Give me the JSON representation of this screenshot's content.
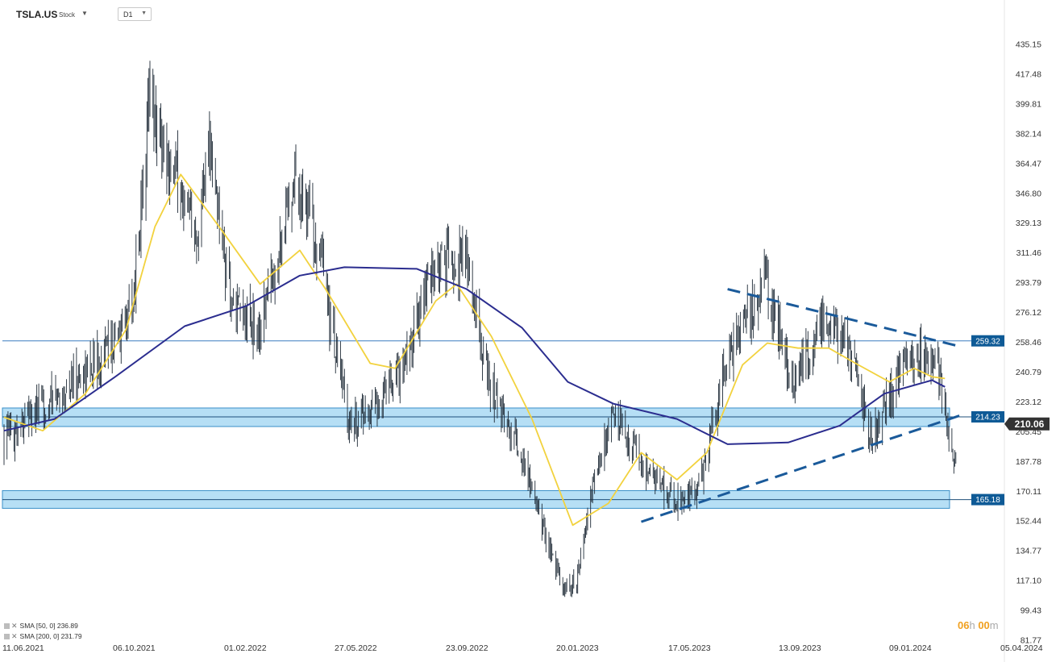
{
  "toolbar": {
    "symbol": "TSLA.US",
    "instrument_type": "Stock",
    "symbol_caret": "▼",
    "timeframe": "D1",
    "timeframe_caret": "▼"
  },
  "legend": [
    {
      "label": "SMA  [50,  0]  236.89",
      "color": "#f2d23e"
    },
    {
      "label": "SMA  [200,  0]  231.79",
      "color": "#2b2d8f"
    }
  ],
  "timer": {
    "hours": "06",
    "hours_unit": "h",
    "minutes": "00",
    "minutes_unit": "m"
  },
  "colors": {
    "candle": "#1e2a36",
    "sma50": "#f2d23e",
    "sma200": "#2b2d8f",
    "zone_fill": "#a9d9f3",
    "zone_border": "#3a8fc8",
    "trend": "#1a5a9a",
    "label_bg": "#0e5a96",
    "last_price_bg": "#333333"
  },
  "chart_data": {
    "type": "candlestick",
    "price_axis_ticks": [
      435.15,
      417.48,
      399.81,
      382.14,
      364.47,
      346.8,
      329.13,
      311.46,
      293.79,
      276.12,
      258.46,
      240.79,
      223.12,
      205.45,
      187.78,
      170.11,
      152.44,
      134.77,
      117.1,
      99.43,
      81.77
    ],
    "date_axis_ticks": [
      "11.06.2021",
      "06.10.2021",
      "01.02.2022",
      "27.05.2022",
      "23.09.2022",
      "20.01.2023",
      "17.05.2023",
      "13.09.2023",
      "09.01.2024",
      "05.04.2024"
    ],
    "ylim": [
      81.77,
      448
    ],
    "close_path": [
      [
        "2021-06-11",
        202
      ],
      [
        "2021-07-15",
        218
      ],
      [
        "2021-08-15",
        232
      ],
      [
        "2021-09-15",
        250
      ],
      [
        "2021-10-06",
        262
      ],
      [
        "2021-10-20",
        290
      ],
      [
        "2021-11-04",
        400
      ],
      [
        "2021-11-25",
        366
      ],
      [
        "2021-12-20",
        318
      ],
      [
        "2022-01-03",
        378
      ],
      [
        "2022-01-27",
        276
      ],
      [
        "2022-02-24",
        266
      ],
      [
        "2022-03-31",
        359
      ],
      [
        "2022-04-20",
        325
      ],
      [
        "2022-05-24",
        210
      ],
      [
        "2022-06-20",
        220
      ],
      [
        "2022-07-15",
        241
      ],
      [
        "2022-08-15",
        300
      ],
      [
        "2022-09-20",
        310
      ],
      [
        "2022-10-10",
        238
      ],
      [
        "2022-11-15",
        190
      ],
      [
        "2022-12-27",
        110
      ],
      [
        "2023-01-09",
        118
      ],
      [
        "2023-01-27",
        178
      ],
      [
        "2023-02-15",
        215
      ],
      [
        "2023-03-20",
        183
      ],
      [
        "2023-04-20",
        162
      ],
      [
        "2023-05-12",
        172
      ],
      [
        "2023-06-13",
        256
      ],
      [
        "2023-07-18",
        293
      ],
      [
        "2023-08-15",
        232
      ],
      [
        "2023-09-15",
        274
      ],
      [
        "2023-10-15",
        252
      ],
      [
        "2023-10-31",
        200
      ],
      [
        "2023-11-30",
        240
      ],
      [
        "2023-12-28",
        253
      ],
      [
        "2024-01-10",
        238
      ],
      [
        "2024-01-26",
        183
      ]
    ],
    "series": [
      {
        "name": "SMA  [50,  0]",
        "points": [
          [
            "2021-06-11",
            214
          ],
          [
            "2021-07-20",
            206
          ],
          [
            "2021-09-01",
            228
          ],
          [
            "2021-10-12",
            266
          ],
          [
            "2021-11-10",
            327
          ],
          [
            "2021-12-06",
            358
          ],
          [
            "2022-01-15",
            326
          ],
          [
            "2022-02-24",
            293
          ],
          [
            "2022-03-20",
            305
          ],
          [
            "2022-04-05",
            313
          ],
          [
            "2022-05-01",
            290
          ],
          [
            "2022-06-15",
            246
          ],
          [
            "2022-07-10",
            243
          ],
          [
            "2022-08-20",
            283
          ],
          [
            "2022-09-10",
            293
          ],
          [
            "2022-10-15",
            262
          ],
          [
            "2022-11-25",
            213
          ],
          [
            "2023-01-05",
            150
          ],
          [
            "2023-02-10",
            163
          ],
          [
            "2023-03-15",
            193
          ],
          [
            "2023-04-20",
            177
          ],
          [
            "2023-05-20",
            193
          ],
          [
            "2023-06-25",
            245
          ],
          [
            "2023-07-20",
            258
          ],
          [
            "2023-08-20",
            255
          ],
          [
            "2023-09-20",
            255
          ],
          [
            "2023-10-20",
            245
          ],
          [
            "2023-11-20",
            235
          ],
          [
            "2023-12-15",
            243
          ],
          [
            "2024-01-02",
            238
          ],
          [
            "2024-01-15",
            237
          ]
        ]
      },
      {
        "name": "SMA  [200,  0]",
        "points": [
          [
            "2021-06-11",
            206
          ],
          [
            "2021-08-01",
            213
          ],
          [
            "2021-10-01",
            238
          ],
          [
            "2021-12-10",
            268
          ],
          [
            "2022-02-10",
            280
          ],
          [
            "2022-04-05",
            298
          ],
          [
            "2022-05-20",
            303
          ],
          [
            "2022-08-01",
            302
          ],
          [
            "2022-09-20",
            290
          ],
          [
            "2022-11-15",
            267
          ],
          [
            "2022-12-31",
            235
          ],
          [
            "2023-02-15",
            222
          ],
          [
            "2023-04-20",
            213
          ],
          [
            "2023-06-10",
            198
          ],
          [
            "2023-08-10",
            199
          ],
          [
            "2023-10-01",
            209
          ],
          [
            "2023-11-15",
            228
          ],
          [
            "2024-01-02",
            236
          ],
          [
            "2024-01-15",
            232
          ]
        ]
      }
    ],
    "horizontal_levels": [
      {
        "label": "259.32",
        "value": 259.32,
        "zone": false
      },
      {
        "label": "214.23",
        "value": 214.23,
        "zone": true,
        "zone_range": [
          208.5,
          219.5
        ]
      },
      {
        "label": "165.18",
        "value": 165.18,
        "zone": true,
        "zone_range": [
          160.0,
          170.5
        ]
      }
    ],
    "trendlines": [
      {
        "from": [
          "2023-06-10",
          290
        ],
        "to": [
          "2024-01-30",
          256
        ]
      },
      {
        "from": [
          "2023-03-15",
          152
        ],
        "to": [
          "2024-01-30",
          215
        ]
      }
    ],
    "last_price": {
      "label": "210.06",
      "value": 210.06
    },
    "grid": false
  }
}
